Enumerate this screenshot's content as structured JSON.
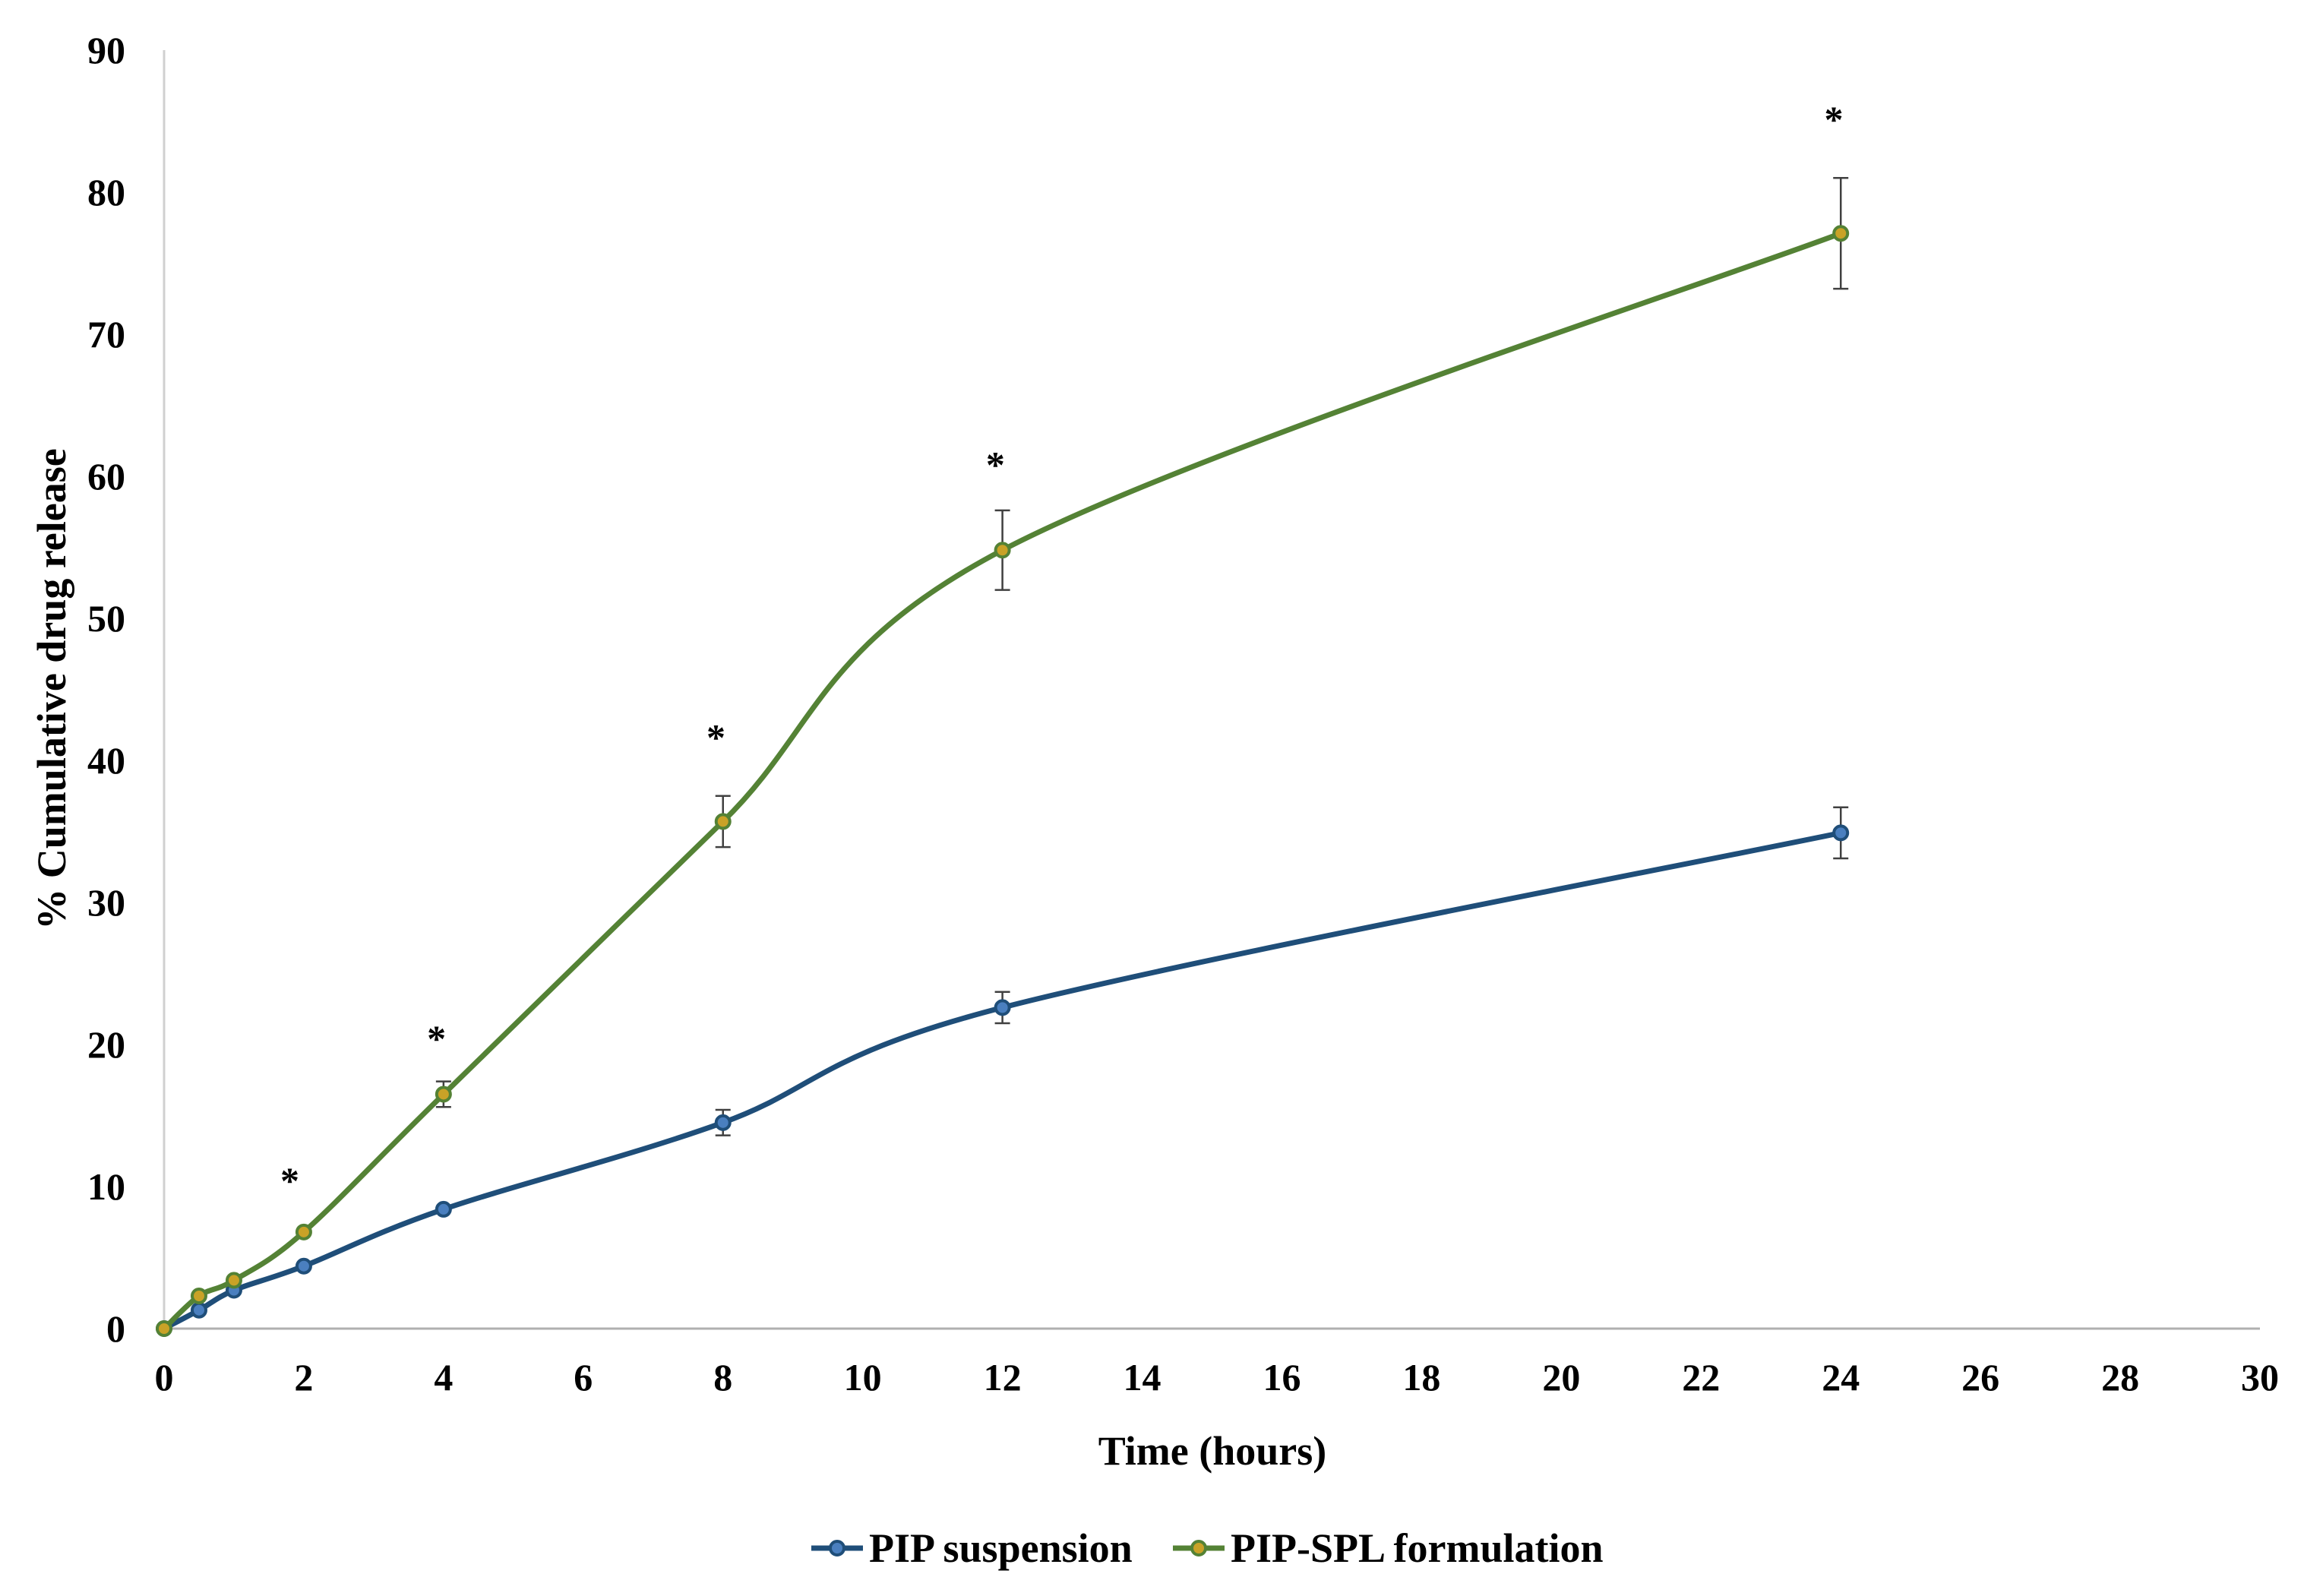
{
  "chart_data": {
    "type": "line",
    "title": "",
    "xlabel": "Time (hours)",
    "ylabel": "% Cumulative drug release",
    "xlim": [
      0,
      30
    ],
    "ylim": [
      0,
      90
    ],
    "x_ticks": [
      "0",
      "2",
      "4",
      "6",
      "8",
      "10",
      "12",
      "14",
      "16",
      "18",
      "20",
      "22",
      "24",
      "26",
      "28",
      "30"
    ],
    "y_ticks": [
      "0",
      "10",
      "20",
      "30",
      "40",
      "50",
      "60",
      "70",
      "80",
      "90"
    ],
    "grid": false,
    "legend_position": "bottom",
    "series": [
      {
        "name": "PIP suspension",
        "color": "#1f4e79",
        "marker_fill": "#4a7fbf",
        "x": [
          0,
          0.5,
          1,
          2,
          4,
          8,
          12,
          24
        ],
        "y": [
          0,
          1.3,
          2.7,
          4.4,
          8.4,
          14.5,
          22.6,
          34.9
        ],
        "error": [
          0,
          0,
          0,
          0,
          0,
          0.9,
          1.1,
          1.8
        ]
      },
      {
        "name": "PIP-SPL formulation",
        "color": "#548235",
        "marker_fill": "#c9a227",
        "x": [
          0,
          0.5,
          1,
          2,
          4,
          8,
          12,
          24
        ],
        "y": [
          0,
          2.3,
          3.4,
          6.8,
          16.5,
          35.7,
          54.8,
          77.1
        ],
        "error": [
          0,
          0,
          0,
          0,
          0.9,
          1.8,
          2.8,
          3.9
        ]
      }
    ],
    "annotations": [
      {
        "text": "*",
        "x": 1.8,
        "y": 10.8
      },
      {
        "text": "*",
        "x": 3.9,
        "y": 20.8
      },
      {
        "text": "*",
        "x": 7.9,
        "y": 42.0
      },
      {
        "text": "*",
        "x": 11.9,
        "y": 61.2
      },
      {
        "text": "*",
        "x": 23.9,
        "y": 85.5
      }
    ]
  }
}
